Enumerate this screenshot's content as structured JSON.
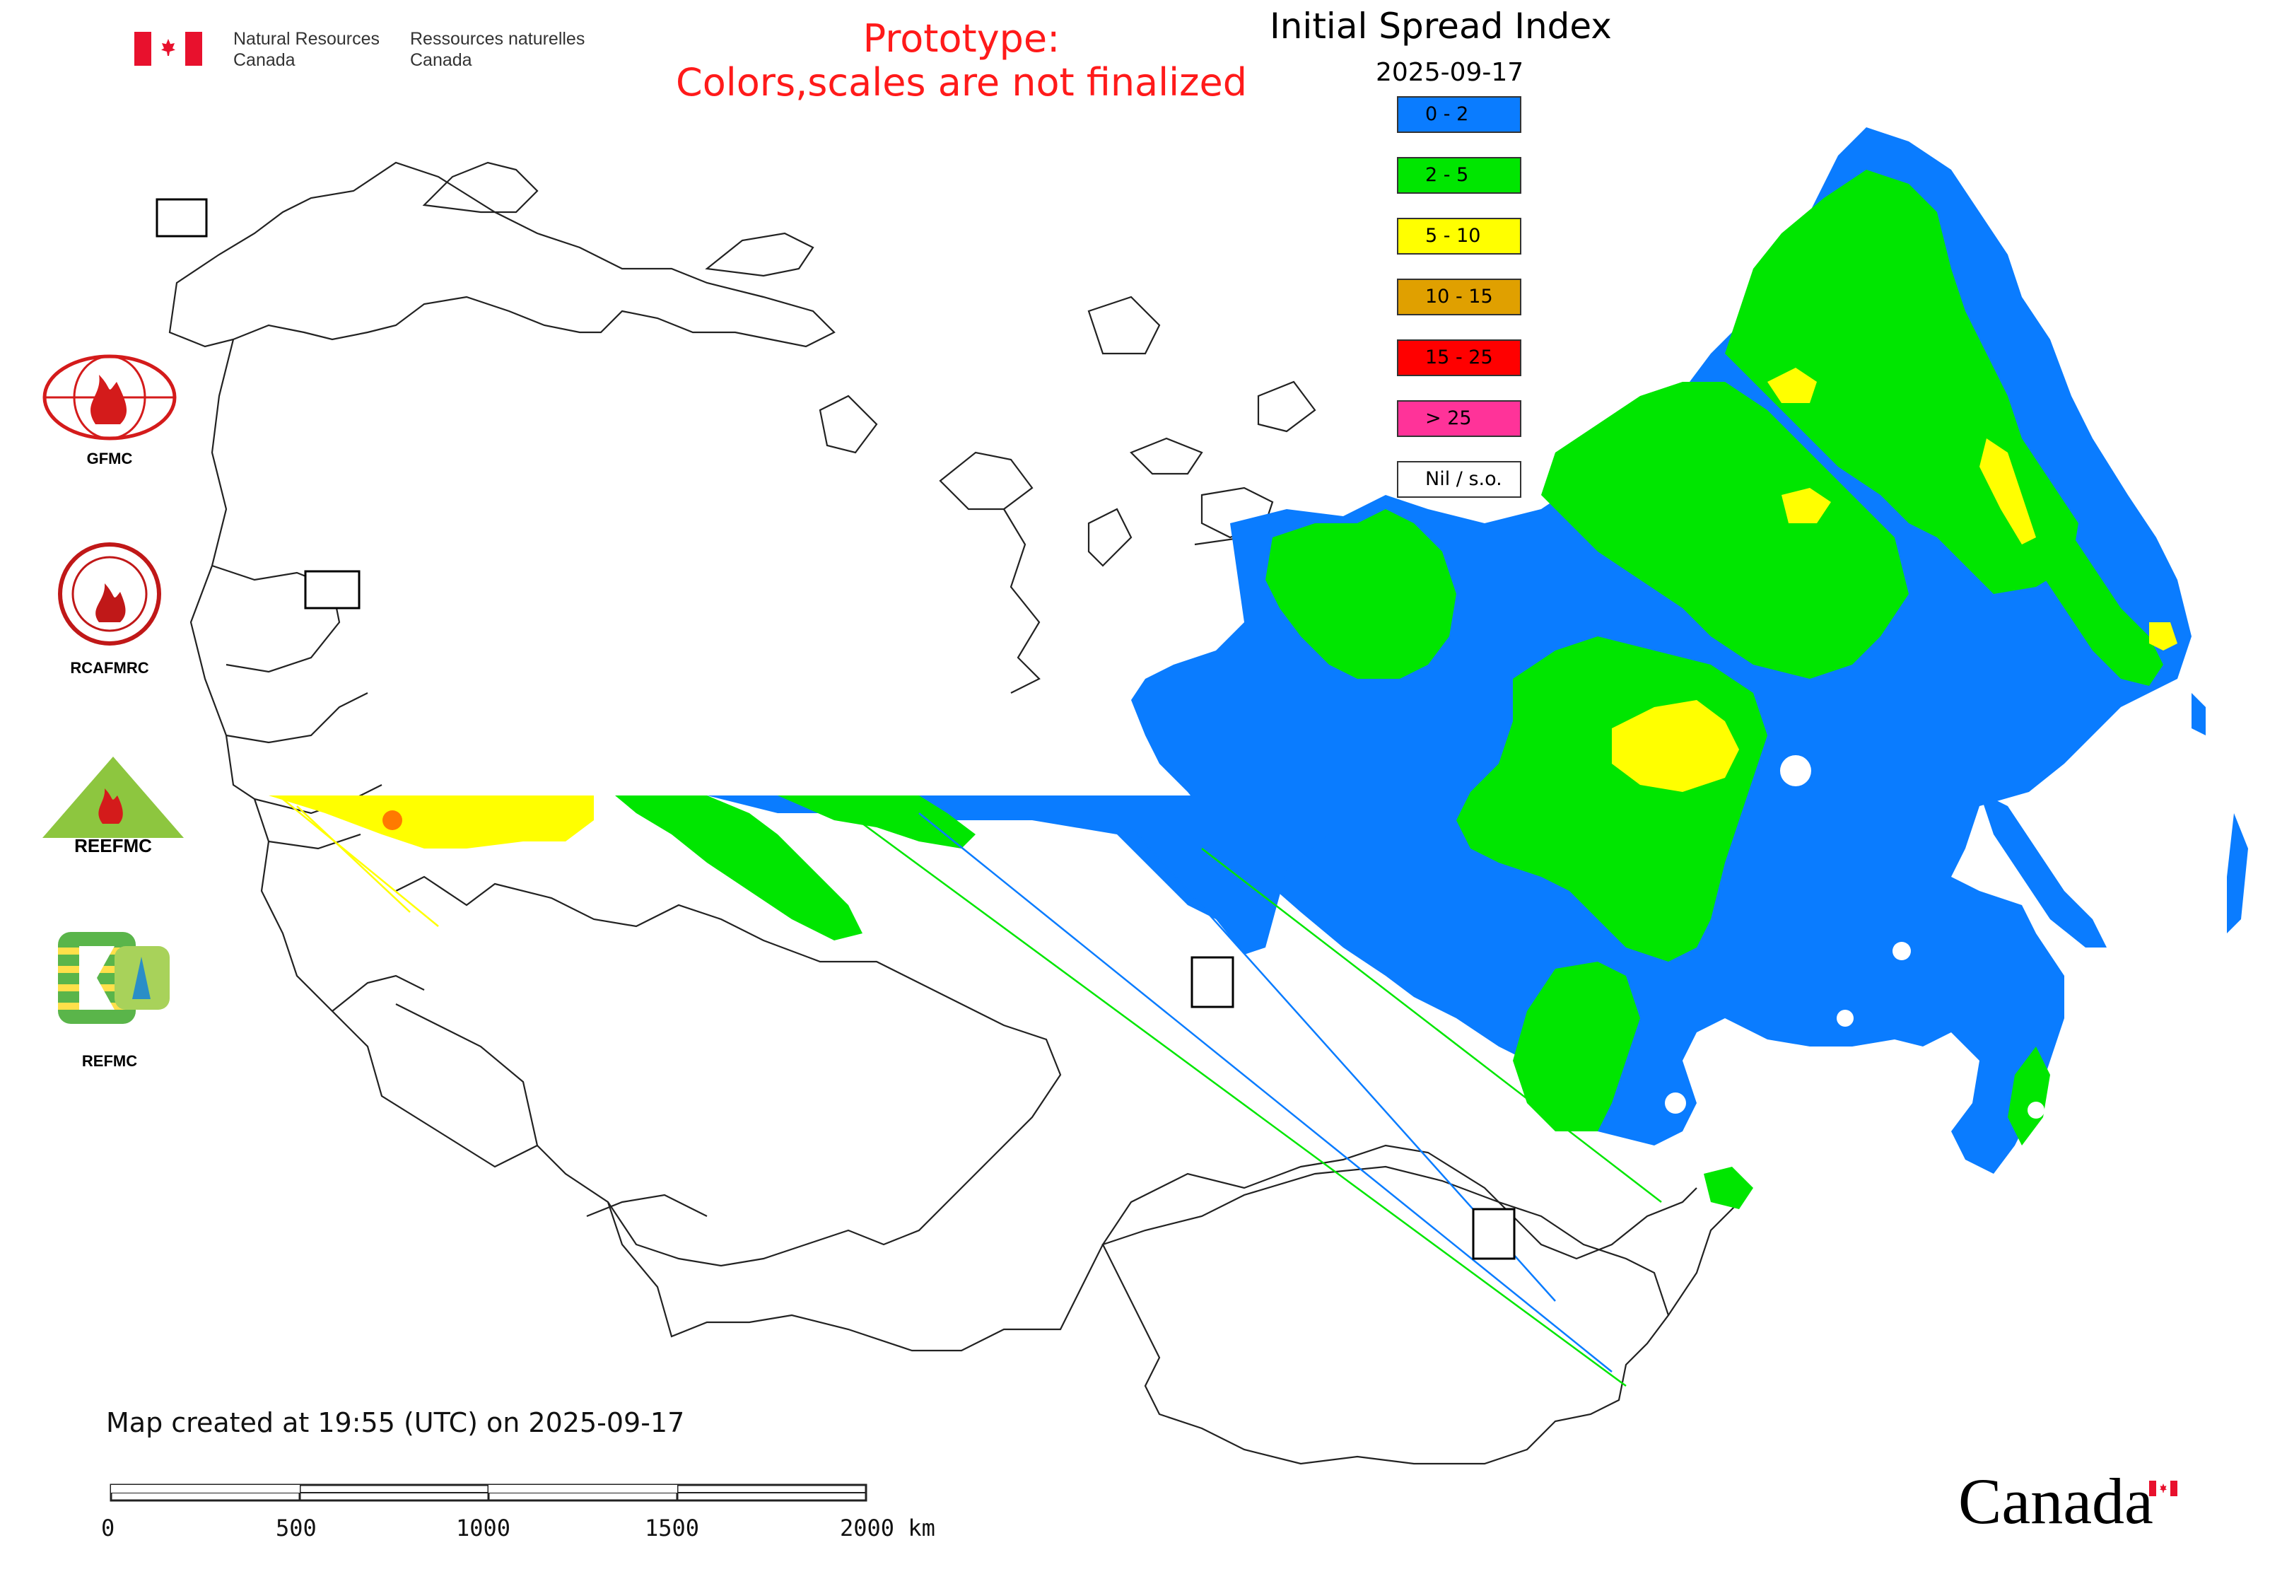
{
  "header": {
    "dept_en_line1": "Natural Resources",
    "dept_en_line2": "Canada",
    "dept_fr_line1": "Ressources naturelles",
    "dept_fr_line2": "Canada",
    "flag_icon": "canada-flag-icon",
    "prototype_line1": "Prototype:",
    "prototype_line2": "Colors,scales are not finalized",
    "prototype_color": "#ff1a1a"
  },
  "map": {
    "title": "Initial Spread Index",
    "date": "2025-09-17",
    "created": "Map created at 19:55 (UTC) on 2025-09-17",
    "legend": [
      {
        "label": "0 - 2",
        "color": "#0a7cff"
      },
      {
        "label": "2 - 5",
        "color": "#00e600"
      },
      {
        "label": "5 - 10",
        "color": "#ffff00"
      },
      {
        "label": "10 - 15",
        "color": "#e0a000"
      },
      {
        "label": "15 - 25",
        "color": "#ff0000"
      },
      {
        "label": "> 25",
        "color": "#ff3399"
      },
      {
        "label": "Nil / s.o.",
        "color": "#ffffff"
      }
    ],
    "scale_bar": {
      "labels": [
        "0",
        "500",
        "1000",
        "1500",
        "2000 km"
      ]
    }
  },
  "logos": [
    {
      "label": "GFMC",
      "icon": "gfmc-logo-icon"
    },
    {
      "label": "RCAFMRC",
      "icon": "rcafmrc-logo-icon"
    },
    {
      "label": "",
      "icon": "reefmc-logo-icon"
    },
    {
      "label": "REFMC",
      "icon": "refmc-logo-icon"
    }
  ],
  "footer": {
    "wordmark": "Canada"
  }
}
